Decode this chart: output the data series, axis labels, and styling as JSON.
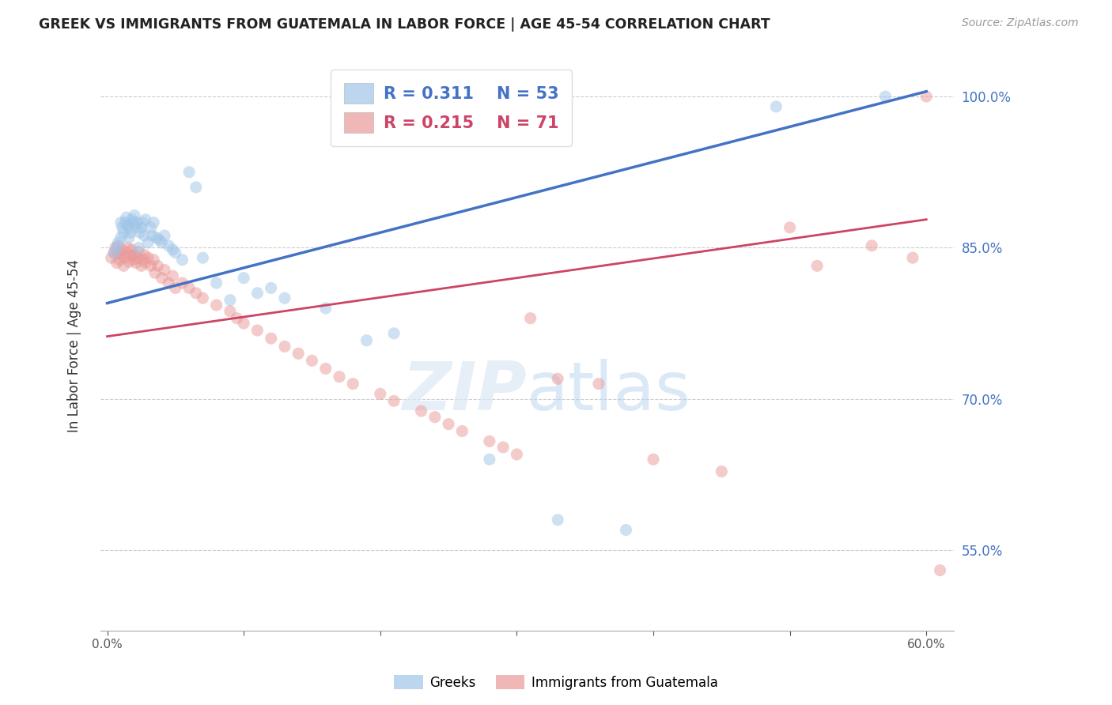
{
  "title": "GREEK VS IMMIGRANTS FROM GUATEMALA IN LABOR FORCE | AGE 45-54 CORRELATION CHART",
  "source": "Source: ZipAtlas.com",
  "ylabel": "In Labor Force | Age 45-54",
  "xlabel_ticks": [
    "0.0%",
    "",
    "",
    "",
    "",
    "",
    "60.0%"
  ],
  "xlabel_vals": [
    0.0,
    0.1,
    0.2,
    0.3,
    0.4,
    0.5,
    0.6
  ],
  "ytick_vals": [
    0.55,
    0.7,
    0.85,
    1.0
  ],
  "ytick_labels": [
    "55.0%",
    "70.0%",
    "85.0%",
    "100.0%"
  ],
  "xmin": -0.005,
  "xmax": 0.62,
  "ymin": 0.47,
  "ymax": 1.035,
  "blue_color": "#9fc5e8",
  "pink_color": "#ea9999",
  "blue_line_color": "#4472c4",
  "pink_line_color": "#cc4466",
  "legend_blue_R": "0.311",
  "legend_blue_N": "53",
  "legend_pink_R": "0.215",
  "legend_pink_N": "71",
  "legend_label_blue": "Greeks",
  "legend_label_pink": "Immigrants from Guatemala",
  "marker_size": 120,
  "marker_alpha": 0.5,
  "blue_trend_x0": 0.0,
  "blue_trend_y0": 0.795,
  "blue_trend_x1": 0.6,
  "blue_trend_y1": 1.005,
  "pink_trend_x0": 0.0,
  "pink_trend_y0": 0.762,
  "pink_trend_x1": 0.6,
  "pink_trend_y1": 0.878,
  "blue_scatter_x": [
    0.005,
    0.007,
    0.008,
    0.01,
    0.01,
    0.011,
    0.012,
    0.013,
    0.014,
    0.015,
    0.016,
    0.016,
    0.017,
    0.018,
    0.019,
    0.02,
    0.021,
    0.022,
    0.023,
    0.024,
    0.025,
    0.026,
    0.027,
    0.028,
    0.03,
    0.032,
    0.033,
    0.034,
    0.036,
    0.038,
    0.04,
    0.042,
    0.045,
    0.048,
    0.05,
    0.055,
    0.06,
    0.065,
    0.07,
    0.08,
    0.09,
    0.1,
    0.11,
    0.12,
    0.13,
    0.16,
    0.19,
    0.21,
    0.28,
    0.33,
    0.38,
    0.49,
    0.57
  ],
  "blue_scatter_y": [
    0.845,
    0.85,
    0.855,
    0.86,
    0.875,
    0.87,
    0.865,
    0.875,
    0.88,
    0.872,
    0.86,
    0.87,
    0.865,
    0.878,
    0.875,
    0.882,
    0.87,
    0.875,
    0.85,
    0.865,
    0.87,
    0.875,
    0.862,
    0.878,
    0.855,
    0.87,
    0.862,
    0.875,
    0.86,
    0.858,
    0.855,
    0.862,
    0.852,
    0.848,
    0.845,
    0.838,
    0.925,
    0.91,
    0.84,
    0.815,
    0.798,
    0.82,
    0.805,
    0.81,
    0.8,
    0.79,
    0.758,
    0.765,
    0.64,
    0.58,
    0.57,
    0.99,
    1.0
  ],
  "pink_scatter_x": [
    0.003,
    0.005,
    0.006,
    0.007,
    0.008,
    0.008,
    0.009,
    0.01,
    0.011,
    0.012,
    0.013,
    0.014,
    0.015,
    0.016,
    0.017,
    0.018,
    0.019,
    0.02,
    0.021,
    0.022,
    0.023,
    0.025,
    0.026,
    0.027,
    0.028,
    0.03,
    0.032,
    0.034,
    0.035,
    0.037,
    0.04,
    0.042,
    0.045,
    0.048,
    0.05,
    0.055,
    0.06,
    0.065,
    0.07,
    0.08,
    0.09,
    0.095,
    0.1,
    0.11,
    0.12,
    0.13,
    0.14,
    0.15,
    0.16,
    0.17,
    0.18,
    0.2,
    0.21,
    0.23,
    0.24,
    0.25,
    0.26,
    0.28,
    0.29,
    0.3,
    0.31,
    0.33,
    0.36,
    0.4,
    0.45,
    0.5,
    0.52,
    0.56,
    0.59,
    0.6,
    0.61
  ],
  "pink_scatter_y": [
    0.84,
    0.845,
    0.85,
    0.835,
    0.845,
    0.852,
    0.838,
    0.843,
    0.848,
    0.832,
    0.84,
    0.845,
    0.85,
    0.836,
    0.842,
    0.848,
    0.838,
    0.843,
    0.835,
    0.84,
    0.846,
    0.832,
    0.838,
    0.843,
    0.835,
    0.84,
    0.832,
    0.838,
    0.825,
    0.832,
    0.82,
    0.828,
    0.815,
    0.822,
    0.81,
    0.815,
    0.81,
    0.805,
    0.8,
    0.793,
    0.787,
    0.78,
    0.775,
    0.768,
    0.76,
    0.752,
    0.745,
    0.738,
    0.73,
    0.722,
    0.715,
    0.705,
    0.698,
    0.688,
    0.682,
    0.675,
    0.668,
    0.658,
    0.652,
    0.645,
    0.78,
    0.72,
    0.715,
    0.64,
    0.628,
    0.87,
    0.832,
    0.852,
    0.84,
    1.0,
    0.53
  ]
}
